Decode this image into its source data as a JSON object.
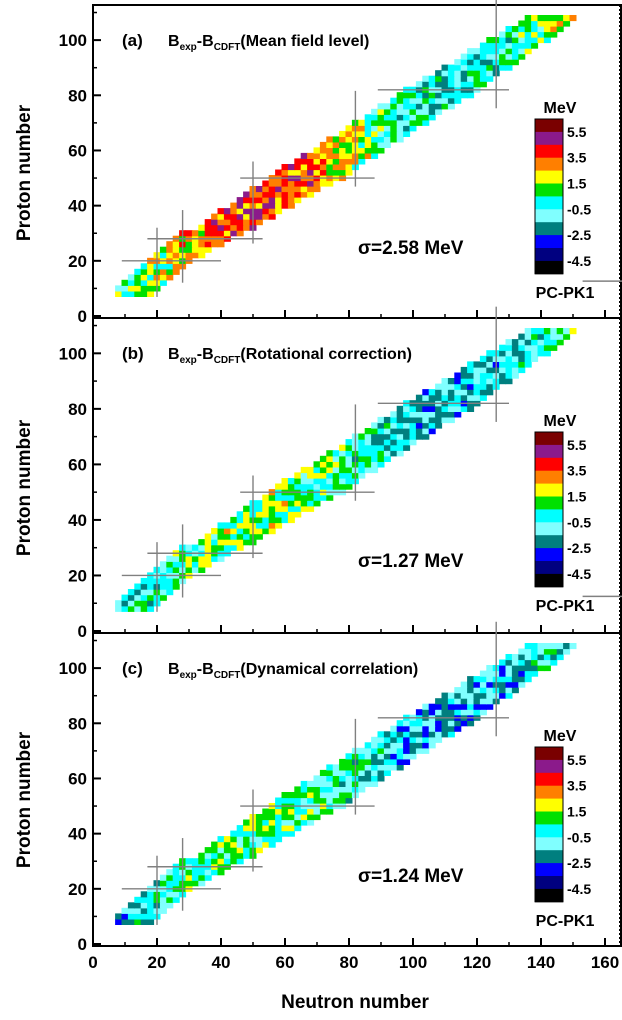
{
  "figure": {
    "xlabel": "Neutron number",
    "ylabel": "Proton number",
    "unit": "MeV",
    "model": "PC-PK1",
    "colorbar": {
      "labels": [
        "5.5",
        "3.5",
        "1.5",
        "-0.5",
        "-2.5",
        "-4.5"
      ],
      "colors": [
        "#7a0000",
        "#8b1a8b",
        "#ff0000",
        "#ff7f00",
        "#ffff00",
        "#00e000",
        "#00ffff",
        "#80ffff",
        "#007f7f",
        "#0000ff",
        "#000080",
        "#000000"
      ],
      "bins": [
        6.5,
        5.5,
        4.5,
        3.5,
        2.5,
        1.5,
        0.5,
        -0.5,
        -1.5,
        -2.5,
        -3.5,
        -4.5,
        -5.5
      ]
    },
    "magic_numbers": [
      8,
      20,
      28,
      50,
      82,
      126
    ]
  },
  "chart_data": [
    {
      "type": "heatmap",
      "panel": "(a)",
      "title_B": "B",
      "title_exp": "exp",
      "title_dash": "-B",
      "title_cdft": "CDFT",
      "title_desc": "(Mean field level)",
      "sigma": "σ=2.58 MeV",
      "xlim": [
        0,
        165
      ],
      "ylim": [
        0,
        112
      ],
      "x_ticks": [
        0,
        20,
        40,
        60,
        80,
        100,
        120,
        140,
        160
      ],
      "y_ticks": [
        0,
        20,
        40,
        60,
        80,
        100
      ],
      "offset": 1.5,
      "amplitude": 2.4
    },
    {
      "type": "heatmap",
      "panel": "(b)",
      "title_B": "B",
      "title_exp": "exp",
      "title_dash": "-B",
      "title_cdft": "CDFT",
      "title_desc": "(Rotational correction)",
      "sigma": "σ=1.27 MeV",
      "xlim": [
        0,
        165
      ],
      "ylim": [
        0,
        112
      ],
      "x_ticks": [
        0,
        20,
        40,
        60,
        80,
        100,
        120,
        140,
        160
      ],
      "y_ticks": [
        0,
        20,
        40,
        60,
        80,
        100
      ],
      "offset": -0.1,
      "amplitude": 1.3
    },
    {
      "type": "heatmap",
      "panel": "(c)",
      "title_B": "B",
      "title_exp": "exp",
      "title_dash": "-B",
      "title_cdft": "CDFT",
      "title_desc": "(Dynamical correlation)",
      "sigma": "σ=1.24 MeV",
      "xlim": [
        0,
        165
      ],
      "ylim": [
        0,
        112
      ],
      "x_ticks": [
        0,
        20,
        40,
        60,
        80,
        100,
        120,
        140,
        160
      ],
      "y_ticks": [
        0,
        20,
        40,
        60,
        80,
        100
      ],
      "offset": -0.5,
      "amplitude": 1.2
    }
  ]
}
